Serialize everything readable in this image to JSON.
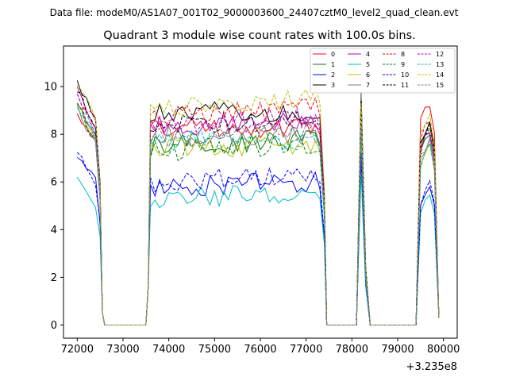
{
  "chart_data": {
    "type": "line",
    "suptitle": "Data file: modeM0/AS1A07_001T02_9000003600_24407cztM0_level2_quad_clean.evt",
    "title": "Quadrant 3 module wise count rates with 100.0s bins.",
    "xlabel": "",
    "ylabel": "",
    "x_offset_label": "+3.235e8",
    "xlim": [
      71700,
      80300
    ],
    "ylim": [
      -0.55,
      11.7
    ],
    "xticks": [
      72000,
      73000,
      74000,
      75000,
      76000,
      77000,
      78000,
      79000,
      80000
    ],
    "xtick_labels": [
      "72000",
      "73000",
      "74000",
      "75000",
      "76000",
      "77000",
      "78000",
      "79000",
      "80000"
    ],
    "yticks": [
      0,
      2,
      4,
      6,
      8,
      10
    ],
    "ytick_labels": [
      "0",
      "2",
      "4",
      "6",
      "8",
      "10"
    ],
    "grid": false,
    "legend_location": "upper right",
    "bin_width_s": 100,
    "segments": [
      {
        "start": 72000,
        "end": 73500
      },
      {
        "start": 73500,
        "end": 77500
      },
      {
        "start": 77500,
        "end": 78450
      },
      {
        "start": 78450,
        "end": 79900
      }
    ],
    "series": [
      {
        "name": "0",
        "color": "#ff0000",
        "dash": "solid",
        "levels": [
          9.0,
          8.3,
          8.3,
          8.2,
          9.0
        ]
      },
      {
        "name": "1",
        "color": "#008000",
        "dash": "solid",
        "levels": [
          9.2,
          7.5,
          7.8,
          7.0,
          7.8
        ]
      },
      {
        "name": "2",
        "color": "#0000ff",
        "dash": "solid",
        "levels": [
          7.3,
          5.8,
          6.0,
          7.0,
          5.6
        ]
      },
      {
        "name": "3",
        "color": "#000000",
        "dash": "solid",
        "levels": [
          10.3,
          8.9,
          9.0,
          9.8,
          8.3
        ]
      },
      {
        "name": "4",
        "color": "#c000c0",
        "dash": "solid",
        "levels": [
          9.8,
          8.3,
          8.5,
          8.3,
          7.8
        ]
      },
      {
        "name": "5",
        "color": "#00bfbf",
        "dash": "solid",
        "levels": [
          6.4,
          5.3,
          5.6,
          6.4,
          5.2
        ]
      },
      {
        "name": "6",
        "color": "#bfbf00",
        "dash": "solid",
        "levels": [
          9.2,
          7.4,
          7.6,
          7.7,
          7.3
        ]
      },
      {
        "name": "7",
        "color": "#808080",
        "dash": "solid",
        "levels": [
          9.0,
          7.9,
          7.9,
          9.7,
          7.5
        ]
      },
      {
        "name": "8",
        "color": "#ff0000",
        "dash": "dashed",
        "levels": [
          9.8,
          8.7,
          9.1,
          8.8,
          8.2
        ]
      },
      {
        "name": "9",
        "color": "#008000",
        "dash": "dashed",
        "levels": [
          9.2,
          7.3,
          7.6,
          8.6,
          7.9
        ]
      },
      {
        "name": "10",
        "color": "#0000ff",
        "dash": "dashed",
        "levels": [
          7.5,
          6.0,
          6.3,
          7.2,
          5.7
        ]
      },
      {
        "name": "11",
        "color": "#000000",
        "dash": "dashed",
        "levels": [
          9.8,
          8.4,
          8.6,
          9.4,
          8.1
        ]
      },
      {
        "name": "12",
        "color": "#c000c0",
        "dash": "dashed",
        "levels": [
          9.5,
          8.4,
          8.7,
          9.0,
          7.7
        ]
      },
      {
        "name": "13",
        "color": "#00bfbf",
        "dash": "dashed",
        "levels": [
          9.3,
          7.8,
          7.7,
          8.2,
          7.2
        ]
      },
      {
        "name": "14",
        "color": "#bfbf00",
        "dash": "dashed",
        "levels": [
          10.0,
          9.0,
          9.6,
          9.3,
          8.4
        ]
      },
      {
        "name": "15",
        "color": "#808080",
        "dash": "dashed",
        "levels": [
          9.0,
          7.9,
          8.0,
          8.4,
          7.4
        ]
      }
    ]
  }
}
